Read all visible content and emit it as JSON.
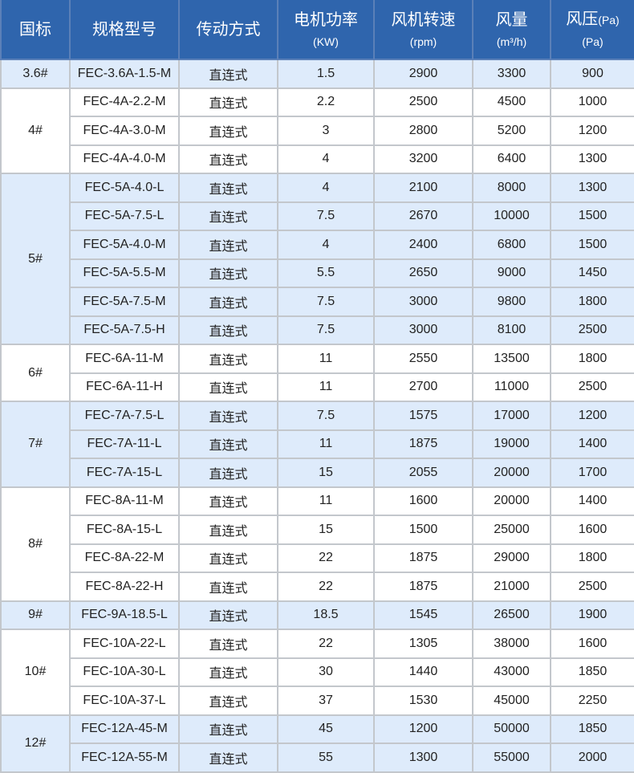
{
  "headers": [
    {
      "main": "国标",
      "sub": ""
    },
    {
      "main": "规格型号",
      "sub": ""
    },
    {
      "main": "传动方式",
      "sub": ""
    },
    {
      "main": "电机功率",
      "sub": "(KW)"
    },
    {
      "main": "风机转速",
      "sub": "(rpm)"
    },
    {
      "main": "风量",
      "sub": "(m³/h)"
    },
    {
      "main": "风压",
      "inline": "(Pa)",
      "sub": "(Pa)"
    }
  ],
  "groups": [
    {
      "label": "3.6#",
      "shaded": true,
      "rows": [
        [
          "FEC-3.6A-1.5-M",
          "直连式",
          "1.5",
          "2900",
          "3300",
          "900"
        ]
      ]
    },
    {
      "label": "4#",
      "shaded": false,
      "rows": [
        [
          "FEC-4A-2.2-M",
          "直连式",
          "2.2",
          "2500",
          "4500",
          "1000"
        ],
        [
          "FEC-4A-3.0-M",
          "直连式",
          "3",
          "2800",
          "5200",
          "1200"
        ],
        [
          "FEC-4A-4.0-M",
          "直连式",
          "4",
          "3200",
          "6400",
          "1300"
        ]
      ]
    },
    {
      "label": "5#",
      "shaded": true,
      "rows": [
        [
          "FEC-5A-4.0-L",
          "直连式",
          "4",
          "2100",
          "8000",
          "1300"
        ],
        [
          "FEC-5A-7.5-L",
          "直连式",
          "7.5",
          "2670",
          "10000",
          "1500"
        ],
        [
          "FEC-5A-4.0-M",
          "直连式",
          "4",
          "2400",
          "6800",
          "1500"
        ],
        [
          "FEC-5A-5.5-M",
          "直连式",
          "5.5",
          "2650",
          "9000",
          "1450"
        ],
        [
          "FEC-5A-7.5-M",
          "直连式",
          "7.5",
          "3000",
          "9800",
          "1800"
        ],
        [
          "FEC-5A-7.5-H",
          "直连式",
          "7.5",
          "3000",
          "8100",
          "2500"
        ]
      ]
    },
    {
      "label": "6#",
      "shaded": false,
      "rows": [
        [
          "FEC-6A-11-M",
          "直连式",
          "11",
          "2550",
          "13500",
          "1800"
        ],
        [
          "FEC-6A-11-H",
          "直连式",
          "11",
          "2700",
          "11000",
          "2500"
        ]
      ]
    },
    {
      "label": "7#",
      "shaded": true,
      "rows": [
        [
          "FEC-7A-7.5-L",
          "直连式",
          "7.5",
          "1575",
          "17000",
          "1200"
        ],
        [
          "FEC-7A-11-L",
          "直连式",
          "11",
          "1875",
          "19000",
          "1400"
        ],
        [
          "FEC-7A-15-L",
          "直连式",
          "15",
          "2055",
          "20000",
          "1700"
        ]
      ]
    },
    {
      "label": "8#",
      "shaded": false,
      "rows": [
        [
          "FEC-8A-11-M",
          "直连式",
          "11",
          "1600",
          "20000",
          "1400"
        ],
        [
          "FEC-8A-15-L",
          "直连式",
          "15",
          "1500",
          "25000",
          "1600"
        ],
        [
          "FEC-8A-22-M",
          "直连式",
          "22",
          "1875",
          "29000",
          "1800"
        ],
        [
          "FEC-8A-22-H",
          "直连式",
          "22",
          "1875",
          "21000",
          "2500"
        ]
      ]
    },
    {
      "label": "9#",
      "shaded": true,
      "rows": [
        [
          "FEC-9A-18.5-L",
          "直连式",
          "18.5",
          "1545",
          "26500",
          "1900"
        ]
      ]
    },
    {
      "label": "10#",
      "shaded": false,
      "rows": [
        [
          "FEC-10A-22-L",
          "直连式",
          "22",
          "1305",
          "38000",
          "1600"
        ],
        [
          "FEC-10A-30-L",
          "直连式",
          "30",
          "1440",
          "43000",
          "1850"
        ],
        [
          "FEC-10A-37-L",
          "直连式",
          "37",
          "1530",
          "45000",
          "2250"
        ]
      ]
    },
    {
      "label": "12#",
      "shaded": true,
      "rows": [
        [
          "FEC-12A-45-M",
          "直连式",
          "45",
          "1200",
          "50000",
          "1850"
        ],
        [
          "FEC-12A-55-M",
          "直连式",
          "55",
          "1300",
          "55000",
          "2000"
        ]
      ]
    }
  ],
  "colors": {
    "header_bg": "#2f65ad",
    "shaded_row": "#deebfb",
    "border": "#c3c7cc"
  }
}
